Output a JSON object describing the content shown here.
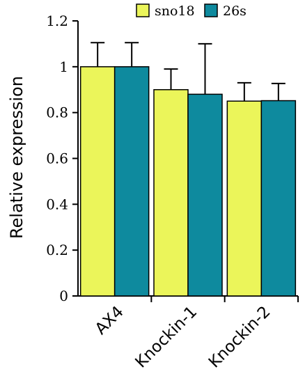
{
  "chart_data": {
    "type": "bar",
    "title": "",
    "xlabel": "",
    "ylabel": "Relative expression",
    "ylim": [
      0,
      1.2
    ],
    "yticks": [
      "0",
      "0.2",
      "0.4",
      "0.6",
      "0.8",
      "1",
      "1.2"
    ],
    "categories": [
      "AX4",
      "Knockin-1",
      "Knockin-2"
    ],
    "series": [
      {
        "name": "sno18",
        "color": "#ebf55a",
        "values": [
          1.0,
          0.9,
          0.85
        ],
        "errors": [
          0.105,
          0.09,
          0.08
        ]
      },
      {
        "name": "26s",
        "color": "#0e8a9e",
        "values": [
          1.0,
          0.88,
          0.852
        ],
        "errors": [
          0.105,
          0.22,
          0.075
        ]
      }
    ],
    "grid": false,
    "legend_position": "top-right"
  }
}
